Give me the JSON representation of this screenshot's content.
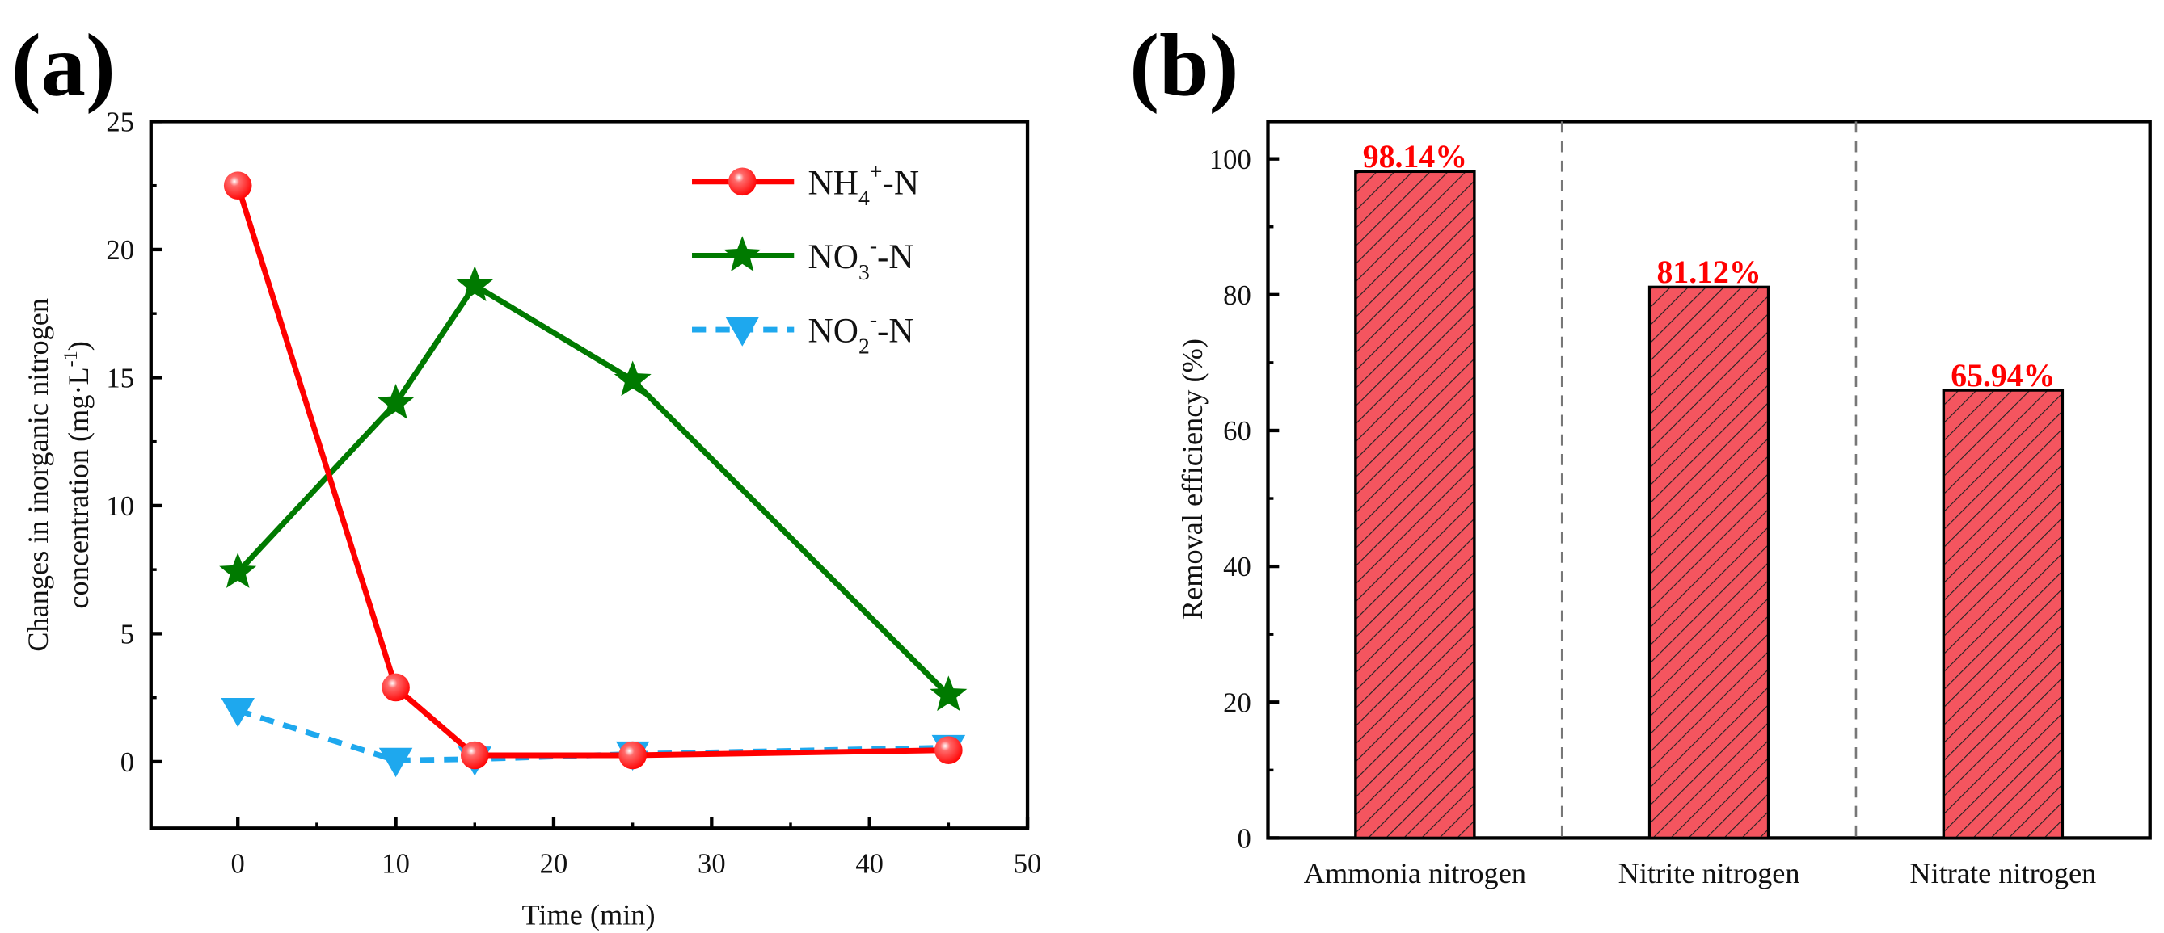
{
  "chart_data": [
    {
      "panel_label": "(a)",
      "type": "line",
      "xlabel": "Time (min)",
      "ylabel_line1": "Changes in inorganic nitrogen",
      "ylabel_line2": "concentration (mg·L",
      "ylabel_sup": "-1",
      "ylabel_end": ")",
      "xlim": [
        -5.5,
        50
      ],
      "ylim": [
        -2.6,
        25
      ],
      "xticks": [
        0,
        10,
        20,
        30,
        40,
        50
      ],
      "yticks": [
        0,
        5,
        10,
        15,
        20,
        25
      ],
      "legend_position": "top-right",
      "series": [
        {
          "name": "NH4+-N",
          "label_main": "NH",
          "label_sub": "4",
          "label_sup": "+",
          "label_end": "-N",
          "color": "#ff0000",
          "marker": "circle",
          "dashed": false,
          "x": [
            0,
            10,
            15,
            25,
            45
          ],
          "y": [
            22.5,
            2.9,
            0.25,
            0.25,
            0.45
          ]
        },
        {
          "name": "NO3--N",
          "label_main": "NO",
          "label_sub": "3",
          "label_sup": "-",
          "label_end": "-N",
          "color": "#007a00",
          "marker": "star",
          "dashed": false,
          "x": [
            0,
            10,
            15,
            25,
            45
          ],
          "y": [
            7.4,
            14.0,
            18.6,
            14.9,
            2.6
          ]
        },
        {
          "name": "NO2--N",
          "label_main": "NO",
          "label_sub": "2",
          "label_sup": "-",
          "label_end": "-N",
          "color": "#1ea8ee",
          "marker": "triangle-down",
          "dashed": true,
          "x": [
            0,
            10,
            15,
            25,
            45
          ],
          "y": [
            2.0,
            0.05,
            0.1,
            0.3,
            0.55
          ]
        }
      ]
    },
    {
      "panel_label": "(b)",
      "type": "bar",
      "ylabel": "Removal efficiency (%)",
      "ylim": [
        0,
        105.5
      ],
      "yticks": [
        0,
        20,
        40,
        60,
        80,
        100
      ],
      "categories": [
        "Ammonia nitrogen",
        "Nitrite nitrogen",
        "Nitrate nitrogen"
      ],
      "values": [
        98.14,
        81.12,
        65.94
      ],
      "value_labels": [
        "98.14%",
        "81.12%",
        "65.94%"
      ],
      "bar_color": "#f4555f",
      "label_color": "#ff0000"
    }
  ]
}
